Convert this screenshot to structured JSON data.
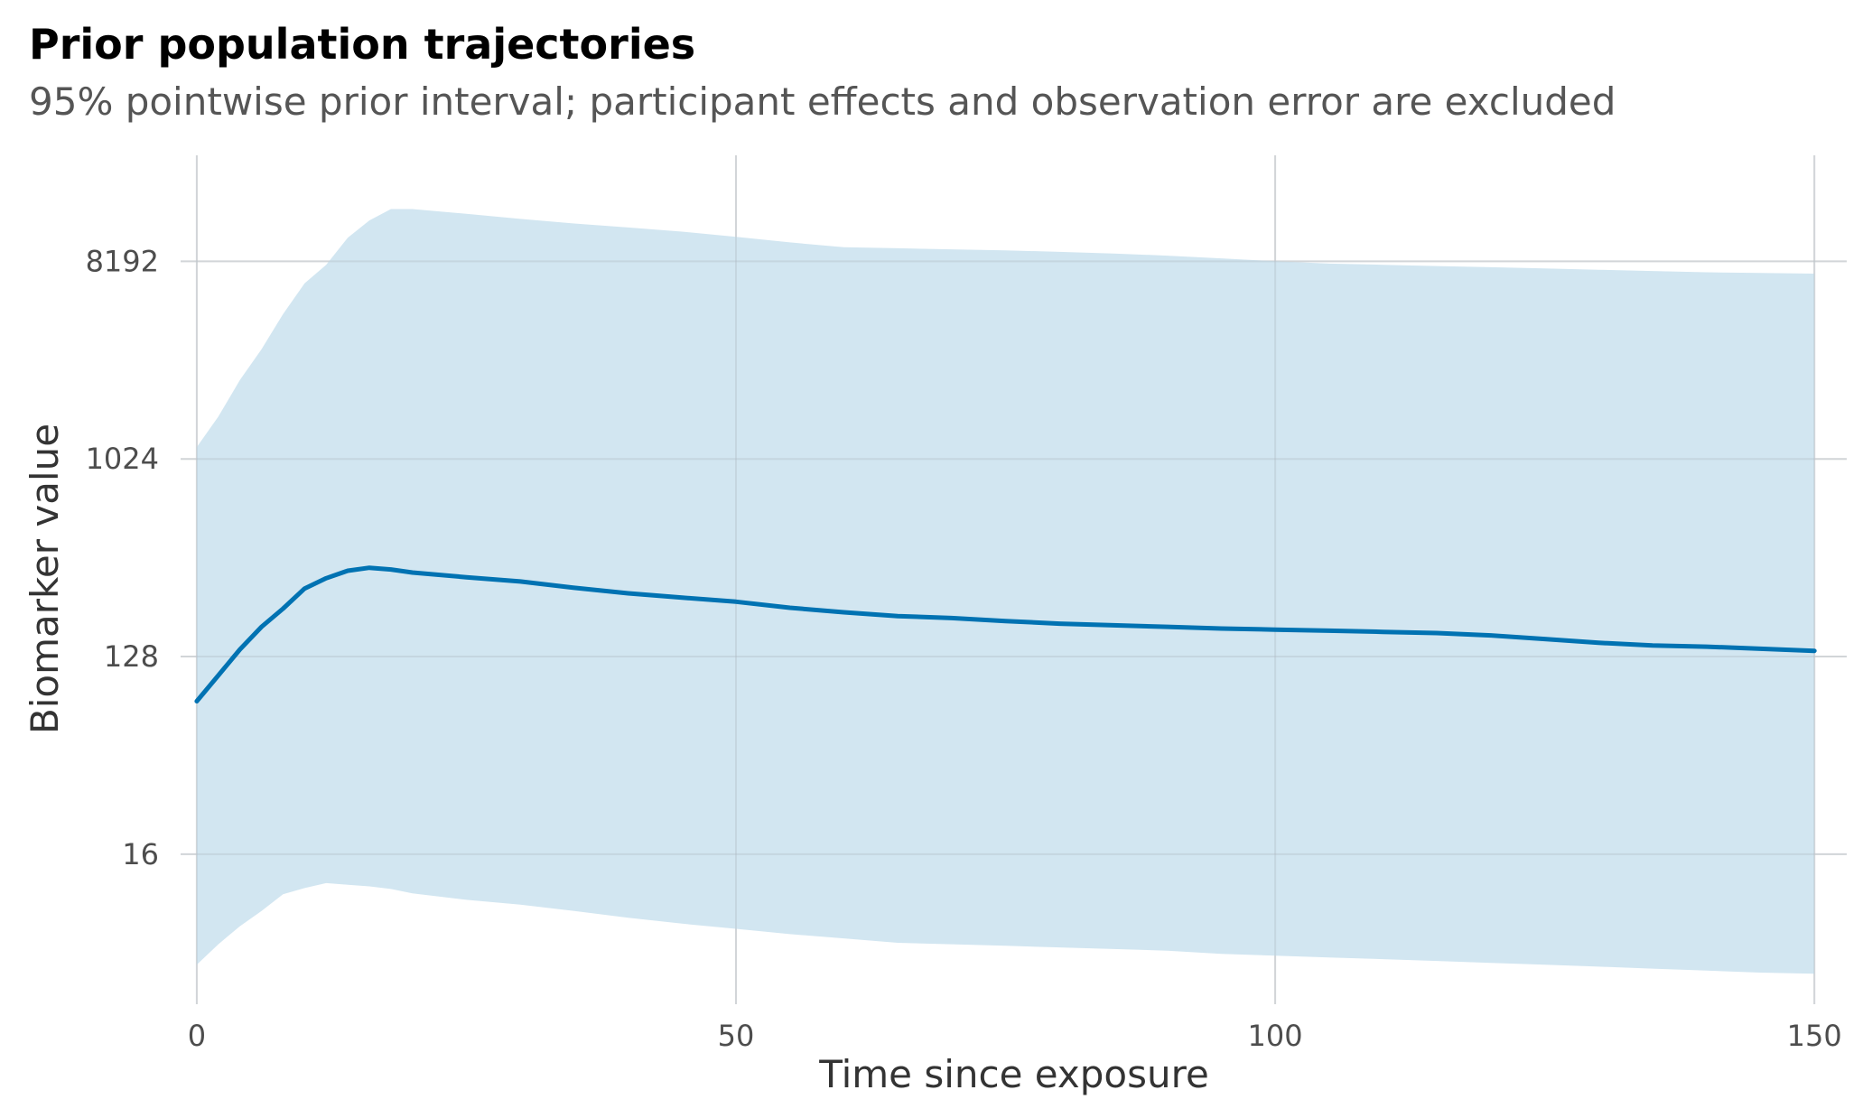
{
  "chart_data": {
    "type": "area",
    "title": "Prior population trajectories",
    "subtitle": "95% pointwise prior interval; participant effects and observation error are excluded",
    "xlabel": "Time since exposure",
    "ylabel": "Biomarker value",
    "x_ticks": [
      0,
      50,
      100,
      150
    ],
    "y_ticks": [
      16,
      128,
      1024,
      8192
    ],
    "y_scale": "log2",
    "xlim": [
      -1.5,
      153
    ],
    "ylim": [
      3.3,
      25000
    ],
    "grid": true,
    "colors": {
      "line": "#0072b2",
      "band": "#d2e6f1",
      "grid": "#e5e5e5"
    },
    "x": [
      0,
      2,
      4,
      6,
      8,
      10,
      12,
      14,
      16,
      18,
      20,
      25,
      30,
      35,
      40,
      45,
      50,
      55,
      60,
      65,
      70,
      75,
      80,
      85,
      90,
      95,
      100,
      105,
      110,
      115,
      120,
      125,
      130,
      135,
      140,
      145,
      150
    ],
    "series": [
      {
        "values": [
          80,
          105,
          138,
          175,
          212,
          262,
          292,
          316,
          326,
          320,
          310,
          295,
          282,
          264,
          249,
          238,
          228,
          214,
          204,
          196,
          192,
          186,
          181,
          178,
          175,
          172,
          170,
          168,
          166,
          164,
          160,
          154,
          148,
          144,
          142,
          139,
          136
        ]
      },
      {
        "name": "upper",
        "values": [
          1160,
          1600,
          2350,
          3250,
          4700,
          6500,
          7900,
          10500,
          12600,
          14200,
          14200,
          13500,
          12800,
          12200,
          11700,
          11200,
          10600,
          10000,
          9500,
          9400,
          9300,
          9200,
          9050,
          8900,
          8700,
          8450,
          8200,
          8000,
          7900,
          7800,
          7700,
          7600,
          7500,
          7400,
          7300,
          7250,
          7200
        ]
      },
      {
        "name": "lower",
        "values": [
          5.0,
          6.2,
          7.5,
          8.8,
          10.5,
          11.2,
          11.8,
          11.6,
          11.4,
          11.1,
          10.6,
          9.9,
          9.4,
          8.8,
          8.2,
          7.7,
          7.3,
          6.9,
          6.6,
          6.3,
          6.2,
          6.1,
          6.0,
          5.9,
          5.8,
          5.6,
          5.5,
          5.4,
          5.3,
          5.2,
          5.1,
          5.0,
          4.9,
          4.8,
          4.7,
          4.6,
          4.55
        ]
      }
    ]
  }
}
